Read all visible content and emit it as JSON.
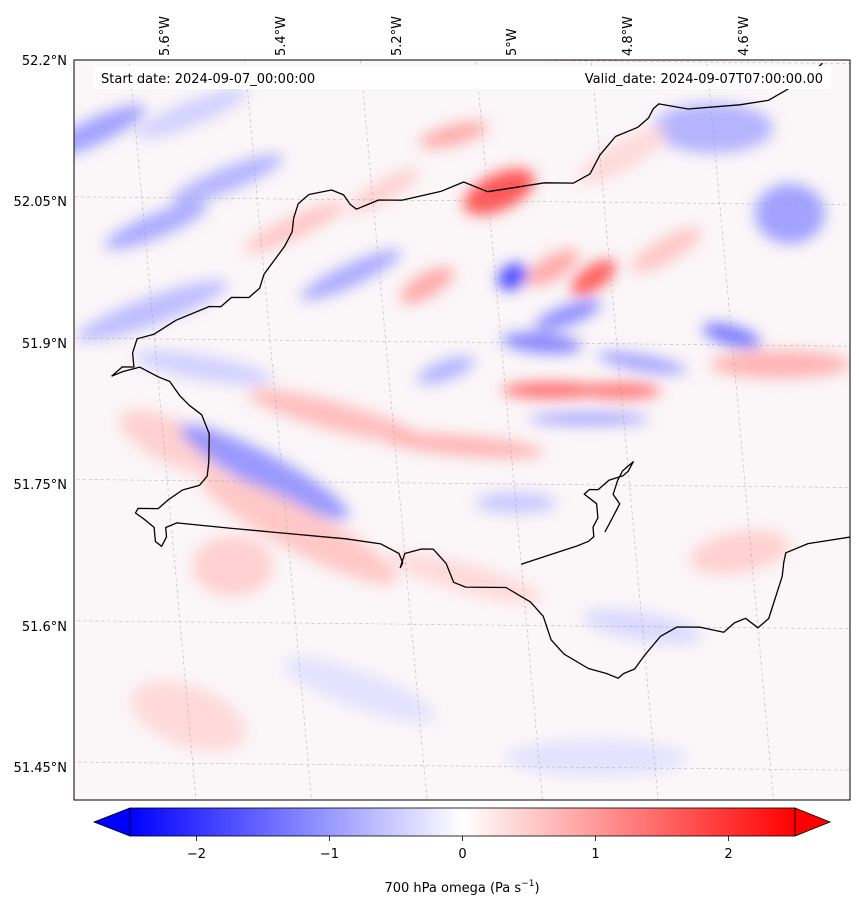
{
  "map": {
    "start_label": "Start date: 2024-09-07_00:00:00",
    "valid_label": "Valid_date: 2024-09-07T07:00:00.00",
    "lon_labels": [
      "5.6°W",
      "5.4°W",
      "5.2°W",
      "5°W",
      "4.8°W",
      "4.6°W"
    ],
    "lat_labels": [
      "52.2°N",
      "52.05°N",
      "51.9°N",
      "51.75°N",
      "51.6°N",
      "51.45°N"
    ],
    "coastline_color": "#000000",
    "gridline_style": "dashed-grey"
  },
  "colorbar": {
    "label_prefix": "700 hPa omega (Pa s",
    "label_exponent": "−1",
    "label_suffix": ")",
    "ticks": [
      {
        "value": -2,
        "label": "−2"
      },
      {
        "value": -1,
        "label": "−1"
      },
      {
        "value": 0,
        "label": "0"
      },
      {
        "value": 1,
        "label": "1"
      },
      {
        "value": 2,
        "label": "2"
      }
    ],
    "range": [
      -2.5,
      2.5
    ],
    "colormap": "bwr",
    "extend": "both",
    "color_min": "#0000ff",
    "color_mid": "#ffffff",
    "color_max": "#ff0000"
  },
  "field": {
    "blobs": [
      {
        "lon": -5.58,
        "lat": 51.79,
        "v": 0.5,
        "rx": 60,
        "ry": 22,
        "a": -25
      },
      {
        "lon": -5.43,
        "lat": 51.76,
        "v": -1.1,
        "rx": 95,
        "ry": 18,
        "a": -28
      },
      {
        "lon": -5.38,
        "lat": 51.7,
        "v": 0.6,
        "rx": 110,
        "ry": 22,
        "a": -28
      },
      {
        "lon": -5.5,
        "lat": 51.66,
        "v": 0.5,
        "rx": 40,
        "ry": 30,
        "a": 0
      },
      {
        "lon": -5.3,
        "lat": 51.82,
        "v": 0.7,
        "rx": 90,
        "ry": 14,
        "a": -15
      },
      {
        "lon": -5.52,
        "lat": 51.87,
        "v": -0.5,
        "rx": 70,
        "ry": 12,
        "a": -10
      },
      {
        "lon": -5.6,
        "lat": 51.93,
        "v": -0.7,
        "rx": 80,
        "ry": 14,
        "a": 20
      },
      {
        "lon": -5.58,
        "lat": 52.02,
        "v": -0.9,
        "rx": 55,
        "ry": 12,
        "a": 22
      },
      {
        "lon": -5.45,
        "lat": 52.07,
        "v": -0.8,
        "rx": 60,
        "ry": 12,
        "a": 22
      },
      {
        "lon": -5.34,
        "lat": 52.02,
        "v": 0.6,
        "rx": 55,
        "ry": 11,
        "a": 25
      },
      {
        "lon": -5.25,
        "lat": 51.97,
        "v": -0.9,
        "rx": 55,
        "ry": 11,
        "a": 25
      },
      {
        "lon": -5.67,
        "lat": 52.12,
        "v": -1.0,
        "rx": 55,
        "ry": 13,
        "a": 25
      },
      {
        "lon": -5.5,
        "lat": 52.14,
        "v": -0.5,
        "rx": 60,
        "ry": 12,
        "a": 22
      },
      {
        "lon": -5.18,
        "lat": 52.06,
        "v": 0.5,
        "rx": 40,
        "ry": 10,
        "a": 30
      },
      {
        "lon": -5.12,
        "lat": 51.96,
        "v": 0.9,
        "rx": 30,
        "ry": 12,
        "a": 30
      },
      {
        "lon": -5.1,
        "lat": 51.87,
        "v": -0.8,
        "rx": 30,
        "ry": 10,
        "a": 20
      },
      {
        "lon": -4.98,
        "lat": 52.06,
        "v": 1.8,
        "rx": 38,
        "ry": 18,
        "a": 25
      },
      {
        "lon": -4.97,
        "lat": 51.97,
        "v": -1.9,
        "rx": 16,
        "ry": 12,
        "a": 35
      },
      {
        "lon": -4.9,
        "lat": 51.98,
        "v": 0.9,
        "rx": 30,
        "ry": 12,
        "a": 30
      },
      {
        "lon": -4.83,
        "lat": 51.97,
        "v": 1.7,
        "rx": 26,
        "ry": 12,
        "a": 35
      },
      {
        "lon": -4.88,
        "lat": 51.93,
        "v": -1.2,
        "rx": 35,
        "ry": 10,
        "a": 20
      },
      {
        "lon": -4.93,
        "lat": 51.9,
        "v": -1.3,
        "rx": 40,
        "ry": 10,
        "a": -5
      },
      {
        "lon": -4.92,
        "lat": 51.85,
        "v": 1.6,
        "rx": 50,
        "ry": 8,
        "a": 0
      },
      {
        "lon": -4.8,
        "lat": 51.85,
        "v": 1.5,
        "rx": 40,
        "ry": 8,
        "a": 0
      },
      {
        "lon": -4.86,
        "lat": 51.82,
        "v": -1.0,
        "rx": 60,
        "ry": 6,
        "a": 0
      },
      {
        "lon": -4.76,
        "lat": 51.88,
        "v": -1.0,
        "rx": 45,
        "ry": 8,
        "a": -10
      },
      {
        "lon": -4.6,
        "lat": 51.91,
        "v": -1.4,
        "rx": 30,
        "ry": 10,
        "a": -15
      },
      {
        "lon": -4.52,
        "lat": 51.88,
        "v": 0.8,
        "rx": 70,
        "ry": 14,
        "a": 0
      },
      {
        "lon": -4.48,
        "lat": 52.04,
        "v": -1.0,
        "rx": 35,
        "ry": 30,
        "a": 0
      },
      {
        "lon": -4.6,
        "lat": 52.13,
        "v": -0.8,
        "rx": 60,
        "ry": 25,
        "a": 0
      },
      {
        "lon": -4.76,
        "lat": 52.1,
        "v": 0.4,
        "rx": 50,
        "ry": 14,
        "a": 30
      },
      {
        "lon": -4.7,
        "lat": 52.0,
        "v": 0.6,
        "rx": 40,
        "ry": 12,
        "a": 30
      },
      {
        "lon": -5.05,
        "lat": 52.12,
        "v": 0.9,
        "rx": 35,
        "ry": 10,
        "a": 15
      },
      {
        "lon": -5.08,
        "lat": 51.79,
        "v": 0.8,
        "rx": 80,
        "ry": 10,
        "a": -5
      },
      {
        "lon": -5.0,
        "lat": 51.73,
        "v": -0.6,
        "rx": 40,
        "ry": 10,
        "a": 0
      },
      {
        "lon": -5.1,
        "lat": 51.65,
        "v": 0.4,
        "rx": 80,
        "ry": 14,
        "a": -15
      },
      {
        "lon": -4.8,
        "lat": 51.6,
        "v": -0.4,
        "rx": 60,
        "ry": 14,
        "a": -10
      },
      {
        "lon": -4.62,
        "lat": 51.68,
        "v": 0.5,
        "rx": 50,
        "ry": 20,
        "a": 10
      },
      {
        "lon": -5.3,
        "lat": 51.53,
        "v": -0.3,
        "rx": 80,
        "ry": 18,
        "a": -20
      },
      {
        "lon": -4.9,
        "lat": 51.46,
        "v": -0.3,
        "rx": 90,
        "ry": 18,
        "a": 0
      },
      {
        "lon": -5.6,
        "lat": 51.5,
        "v": 0.4,
        "rx": 60,
        "ry": 30,
        "a": -20
      }
    ]
  },
  "coastline": [
    [
      [
        -5.68,
        51.86
      ],
      [
        -5.66,
        51.865
      ],
      [
        -5.63,
        51.87
      ],
      [
        -5.6,
        51.86
      ],
      [
        -5.58,
        51.855
      ],
      [
        -5.565,
        51.84
      ],
      [
        -5.55,
        51.83
      ],
      [
        -5.53,
        51.82
      ],
      [
        -5.52,
        51.8
      ],
      [
        -5.525,
        51.77
      ],
      [
        -5.53,
        51.755
      ],
      [
        -5.545,
        51.745
      ],
      [
        -5.575,
        51.74
      ],
      [
        -5.6,
        51.73
      ],
      [
        -5.62,
        51.72
      ],
      [
        -5.655,
        51.72
      ],
      [
        -5.66,
        51.715
      ],
      [
        -5.645,
        51.708
      ],
      [
        -5.63,
        51.7
      ],
      [
        -5.63,
        51.685
      ],
      [
        -5.62,
        51.68
      ],
      [
        -5.61,
        51.69
      ],
      [
        -5.61,
        51.7
      ],
      [
        -5.59,
        51.705
      ],
      [
        -5.5,
        51.7
      ],
      [
        -5.4,
        51.695
      ],
      [
        -5.3,
        51.69
      ],
      [
        -5.24,
        51.685
      ],
      [
        -5.21,
        51.675
      ],
      [
        -5.205,
        51.665
      ],
      [
        -5.21,
        51.66
      ],
      [
        -5.2,
        51.675
      ],
      [
        -5.17,
        51.68
      ],
      [
        -5.15,
        51.68
      ],
      [
        -5.13,
        51.665
      ],
      [
        -5.12,
        51.645
      ],
      [
        -5.1,
        51.64
      ],
      [
        -5.03,
        51.64
      ],
      [
        -4.99,
        51.625
      ],
      [
        -4.97,
        51.61
      ],
      [
        -4.96,
        51.585
      ],
      [
        -4.94,
        51.57
      ],
      [
        -4.9,
        51.555
      ],
      [
        -4.87,
        51.55
      ],
      [
        -4.85,
        51.545
      ],
      [
        -4.84,
        51.55
      ],
      [
        -4.82,
        51.555
      ],
      [
        -4.8,
        51.57
      ],
      [
        -4.77,
        51.59
      ],
      [
        -4.74,
        51.6
      ],
      [
        -4.7,
        51.6
      ],
      [
        -4.66,
        51.595
      ],
      [
        -4.64,
        51.605
      ],
      [
        -4.62,
        51.61
      ],
      [
        -4.6,
        51.6
      ],
      [
        -4.58,
        51.61
      ],
      [
        -4.57,
        51.625
      ],
      [
        -4.56,
        51.64
      ],
      [
        -4.55,
        51.655
      ],
      [
        -4.545,
        51.67
      ],
      [
        -4.54,
        51.68
      ],
      [
        -4.5,
        51.69
      ],
      [
        -4.4,
        51.7
      ],
      [
        -4.35,
        51.7
      ],
      [
        -4.34,
        51.71
      ],
      [
        -4.33,
        51.72
      ],
      [
        -4.335,
        51.73
      ],
      [
        -4.33,
        51.745
      ]
    ],
    [
      [
        -4.85,
        51.7
      ],
      [
        -4.84,
        51.71
      ],
      [
        -4.83,
        51.72
      ],
      [
        -4.82,
        51.73
      ],
      [
        -4.83,
        51.74
      ],
      [
        -4.82,
        51.755
      ],
      [
        -4.81,
        51.765
      ],
      [
        -4.8,
        51.77
      ],
      [
        -4.79,
        51.775
      ],
      [
        -4.8,
        51.765
      ],
      [
        -4.81,
        51.76
      ],
      [
        -4.835,
        51.755
      ],
      [
        -4.855,
        51.745
      ],
      [
        -4.87,
        51.745
      ],
      [
        -4.88,
        51.74
      ],
      [
        -4.86,
        51.73
      ],
      [
        -4.86,
        51.715
      ],
      [
        -4.87,
        51.705
      ],
      [
        -4.87,
        51.695
      ],
      [
        -4.88,
        51.69
      ],
      [
        -4.9,
        51.685
      ],
      [
        -4.95,
        51.675
      ],
      [
        -5.0,
        51.665
      ]
    ],
    [
      [
        -5.68,
        51.86
      ],
      [
        -5.66,
        51.87
      ],
      [
        -5.64,
        51.87
      ],
      [
        -5.64,
        51.885
      ],
      [
        -5.63,
        51.9
      ],
      [
        -5.6,
        51.905
      ],
      [
        -5.56,
        51.92
      ],
      [
        -5.5,
        51.935
      ],
      [
        -5.48,
        51.935
      ],
      [
        -5.46,
        51.945
      ],
      [
        -5.43,
        51.945
      ],
      [
        -5.41,
        51.955
      ],
      [
        -5.4,
        51.97
      ],
      [
        -5.38,
        51.985
      ],
      [
        -5.36,
        52.0
      ],
      [
        -5.345,
        52.015
      ],
      [
        -5.34,
        52.03
      ],
      [
        -5.33,
        52.045
      ],
      [
        -5.31,
        52.055
      ],
      [
        -5.27,
        52.06
      ],
      [
        -5.25,
        52.055
      ],
      [
        -5.24,
        52.045
      ],
      [
        -5.23,
        52.04
      ],
      [
        -5.21,
        52.045
      ],
      [
        -5.19,
        52.05
      ],
      [
        -5.15,
        52.05
      ],
      [
        -5.08,
        52.06
      ],
      [
        -5.04,
        52.07
      ],
      [
        -5.0,
        52.06
      ],
      [
        -4.95,
        52.065
      ],
      [
        -4.9,
        52.07
      ],
      [
        -4.85,
        52.07
      ],
      [
        -4.82,
        52.08
      ],
      [
        -4.8,
        52.1
      ],
      [
        -4.77,
        52.12
      ],
      [
        -4.73,
        52.13
      ],
      [
        -4.71,
        52.14
      ],
      [
        -4.7,
        52.15
      ],
      [
        -4.69,
        52.155
      ],
      [
        -4.64,
        52.15
      ],
      [
        -4.55,
        52.155
      ],
      [
        -4.5,
        52.16
      ],
      [
        -4.47,
        52.17
      ],
      [
        -4.43,
        52.185
      ],
      [
        -4.4,
        52.2
      ]
    ],
    [
      [
        -4.4,
        51.74
      ],
      [
        -4.38,
        51.745
      ],
      [
        -4.36,
        51.75
      ],
      [
        -4.35,
        51.745
      ],
      [
        -4.34,
        51.74
      ]
    ]
  ]
}
